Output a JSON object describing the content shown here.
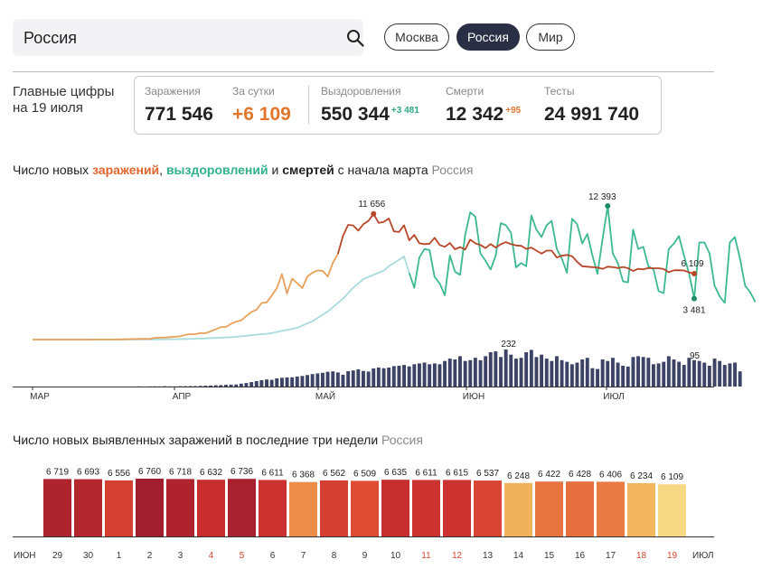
{
  "search": {
    "value": "Россия",
    "icon": "search-icon"
  },
  "regions": [
    {
      "label": "Москва",
      "active": false
    },
    {
      "label": "Россия",
      "active": true
    },
    {
      "label": "Мир",
      "active": false
    }
  ],
  "headline": {
    "line1": "Главные цифры",
    "line2": "на 19 июля"
  },
  "stats": {
    "infections": {
      "label": "Заражения",
      "value": "771 546"
    },
    "per_day": {
      "label": "За сутки",
      "value": "+6 109"
    },
    "recovered": {
      "label": "Выздоровления",
      "value": "550 344",
      "delta": "+3 481"
    },
    "deaths": {
      "label": "Смерти",
      "value": "12 342",
      "delta": "+95"
    },
    "tests": {
      "label": "Тесты",
      "value": "24 991 740"
    }
  },
  "chart1_title": {
    "p1": "Число новых ",
    "infections": "заражений",
    "p2": ", ",
    "recoveries": "выздоровлений",
    "p3": " и ",
    "deaths": "смертей",
    "p4": " с начала марта ",
    "region": "Россия"
  },
  "chart2_title": {
    "text": "Число новых выявленных заражений в последние три недели ",
    "region": "Россия"
  },
  "colors": {
    "infections": "#b8472a",
    "infections_early": "#e7a15a",
    "recoveries": "#3cb892",
    "recoveries_early": "#a9dbdc",
    "deaths": "#3d4366",
    "bar_scale": [
      "#f7dc88",
      "#f2b75f",
      "#ec8f4a",
      "#e04f35",
      "#c92f2f",
      "#a11e2e"
    ]
  },
  "chart_data": [
    {
      "type": "line",
      "title": "Число новых заражений, выздоровлений и смертей с начала марта",
      "x_axis_labels": [
        "МАР",
        "АПР",
        "МАЙ",
        "ИЮН",
        "ИЮЛ"
      ],
      "annotations": {
        "infections_peak": "11 656",
        "recoveries_peak": "12 393",
        "infections_last": "6 109",
        "recoveries_last": "3 481",
        "deaths_peak": "232",
        "deaths_last": "95"
      },
      "series": [
        {
          "name": "Заражения",
          "start": "2020-03-01",
          "values": [
            0,
            0,
            0,
            0,
            0,
            0,
            0,
            0,
            0,
            0,
            2,
            3,
            5,
            6,
            6,
            8,
            12,
            20,
            25,
            40,
            52,
            60,
            71,
            57,
            163,
            182,
            196,
            228,
            270,
            302,
            440,
            500,
            501,
            601,
            582,
            771,
            954,
            1154,
            1175,
            1459,
            1667,
            1786,
            2186,
            2558,
            2774,
            3388,
            3448,
            4070,
            4785,
            6060,
            4268,
            5642,
            5236,
            4774,
            5849,
            6198,
            6411,
            6361,
            5841,
            7099,
            7933,
            9623,
            10633,
            10581,
            10102,
            10699,
            11012,
            11656,
            10817,
            10899,
            11231,
            10028,
            9974,
            10598,
            9200,
            9709,
            8926,
            8849,
            8894,
            9434,
            8764,
            8599,
            8952,
            8371,
            8572,
            8338,
            9268,
            8915,
            8779,
            8485,
            8863,
            8536,
            8831,
            9035,
            8855,
            8726,
            8693,
            8404,
            8529,
            8252,
            7972,
            8246,
            8248,
            7600,
            7790,
            7843,
            7728,
            7212,
            6800,
            6760,
            6719,
            6693,
            6556,
            6760,
            6718,
            6632,
            6736,
            6611,
            6368,
            6562,
            6509,
            6635,
            6611,
            6615,
            6537,
            6248,
            6422,
            6428,
            6406,
            6234,
            6109
          ]
        },
        {
          "name": "Выздоровления",
          "start": "2020-03-01",
          "values": [
            0,
            0,
            0,
            0,
            0,
            0,
            0,
            0,
            0,
            0,
            0,
            0,
            0,
            0,
            0,
            0,
            0,
            0,
            0,
            0,
            2,
            5,
            8,
            9,
            13,
            18,
            21,
            25,
            35,
            45,
            55,
            70,
            80,
            90,
            110,
            130,
            150,
            180,
            200,
            220,
            260,
            300,
            350,
            400,
            460,
            500,
            540,
            600,
            700,
            800,
            900,
            1000,
            1100,
            1300,
            1500,
            1700,
            2000,
            2300,
            2600,
            3000,
            3400,
            3800,
            4300,
            4800,
            5200,
            5600,
            5800,
            6000,
            6200,
            6400,
            6800,
            7100,
            7400,
            7700,
            6200,
            4800,
            7600,
            8400,
            8300,
            5800,
            5200,
            4100,
            7800,
            6300,
            6000,
            9700,
            11800,
            11400,
            8000,
            7300,
            6500,
            7800,
            10800,
            10600,
            9900,
            6700,
            7100,
            6800,
            11500,
            10200,
            9500,
            10600,
            11000,
            8400,
            7500,
            6200,
            11200,
            10700,
            8900,
            9800,
            7800,
            6100,
            9300,
            12393,
            8000,
            7100,
            5400,
            5300,
            10200,
            8400,
            8600,
            6800,
            6500,
            4500,
            4300,
            8400,
            8900,
            9600,
            7800,
            6100,
            3800,
            9000,
            9000,
            8000,
            5000,
            4000,
            3400,
            9000,
            9500,
            7500,
            5000,
            4400,
            3481
          ]
        },
        {
          "name": "Смерти",
          "start": "2020-03-01",
          "values": [
            0,
            0,
            0,
            0,
            0,
            0,
            0,
            0,
            0,
            0,
            0,
            0,
            0,
            0,
            0,
            0,
            0,
            0,
            0,
            0,
            0,
            1,
            0,
            1,
            1,
            1,
            2,
            1,
            1,
            2,
            2,
            3,
            3,
            4,
            5,
            6,
            8,
            9,
            11,
            12,
            13,
            18,
            22,
            28,
            34,
            40,
            44,
            42,
            51,
            55,
            57,
            58,
            63,
            66,
            72,
            78,
            82,
            86,
            92,
            95,
            88,
            74,
            96,
            101,
            108,
            98,
            94,
            114,
            119,
            115,
            119,
            128,
            130,
            135,
            126,
            140,
            145,
            150,
            140,
            145,
            140,
            160,
            175,
            170,
            190,
            160,
            165,
            180,
            165,
            190,
            215,
            220,
            185,
            232,
            200,
            175,
            180,
            215,
            230,
            185,
            200,
            175,
            160,
            190,
            165,
            155,
            140,
            150,
            170,
            180,
            115,
            110,
            170,
            160,
            180,
            150,
            130,
            125,
            185,
            190,
            185,
            180,
            140,
            145,
            155,
            190,
            170,
            155,
            135,
            180,
            165,
            160,
            150,
            130,
            175,
            160,
            135,
            145,
            150,
            95
          ]
        }
      ]
    },
    {
      "type": "bar",
      "title": "Число новых выявленных заражений в последние три недели",
      "months": {
        "start": "ИЮН",
        "end": "ИЮЛ"
      },
      "categories": [
        "29",
        "30",
        "1",
        "2",
        "3",
        "4",
        "5",
        "6",
        "7",
        "8",
        "9",
        "10",
        "11",
        "12",
        "13",
        "14",
        "15",
        "16",
        "17",
        "18",
        "19"
      ],
      "weekend_categories": [
        "4",
        "5",
        "11",
        "12",
        "18",
        "19"
      ],
      "values": [
        6719,
        6693,
        6556,
        6760,
        6718,
        6632,
        6736,
        6611,
        6368,
        6562,
        6509,
        6635,
        6611,
        6615,
        6537,
        6248,
        6422,
        6428,
        6406,
        6234,
        6109
      ],
      "value_labels": [
        "6 719",
        "6 693",
        "6 556",
        "6 760",
        "6 718",
        "6 632",
        "6 736",
        "6 611",
        "6 368",
        "6 562",
        "6 509",
        "6 635",
        "6 611",
        "6 615",
        "6 537",
        "6 248",
        "6 422",
        "6 428",
        "6 406",
        "6 234",
        "6 109"
      ],
      "ylim": [
        0,
        6760
      ],
      "color_scale": [
        6100,
        6760
      ]
    }
  ]
}
